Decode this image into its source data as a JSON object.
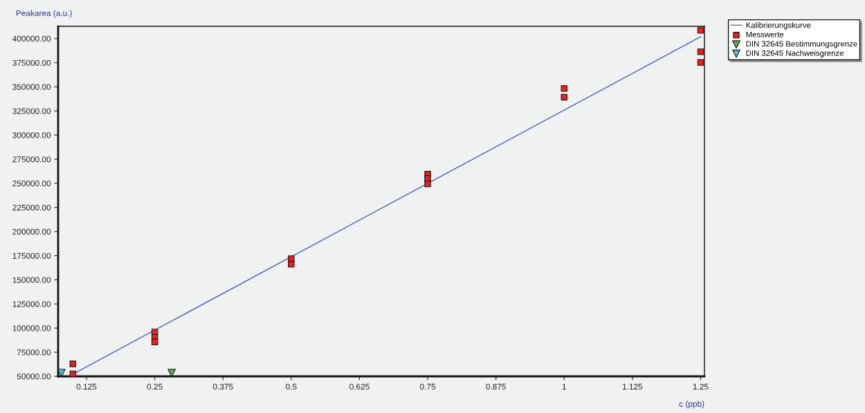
{
  "chart_data": {
    "type": "scatter",
    "xlabel": "c (ppb)",
    "ylabel": "Peakarea (a.u.)",
    "series": [
      {
        "name": "Kalibrierungskurve",
        "type": "line",
        "color": "#4a5ebf",
        "marker": "none",
        "line_style": "solid",
        "x": [
          0.1,
          1.25
        ],
        "values": [
          52300,
          401900
        ]
      },
      {
        "name": "Messwerte",
        "color": "#e8201f",
        "marker": "square",
        "x": [
          0.1,
          0.1,
          0.25,
          0.25,
          0.25,
          0.5,
          0.5,
          0.75,
          0.75,
          0.75,
          1,
          1,
          1.25,
          1.25,
          1.25
        ],
        "values": [
          62900,
          52500,
          95900,
          90400,
          85600,
          171900,
          166200,
          259500,
          255000,
          249500,
          348300,
          339300,
          408500,
          386300,
          375200
        ]
      },
      {
        "name": "DIN 32645 Bestimmungsgrenze",
        "color": "#5fae3a",
        "marker": "triangle",
        "x": [
          0.281
        ],
        "values": [
          53500
        ]
      },
      {
        "name": "DIN 32645 Nachweisgrenze",
        "color": "#4fbfcf",
        "marker": "triangle",
        "x": [
          0.079
        ],
        "values": [
          53500
        ]
      }
    ],
    "xlim": [
      0.073,
      1.257
    ],
    "xticks": [
      0.125,
      0.25,
      0.375,
      0.5,
      0.625,
      0.75,
      0.875,
      1,
      1.125,
      1.25
    ],
    "ylim": [
      50000,
      412700
    ],
    "yticks": [
      {
        "value": 50000,
        "label": "50000.00"
      },
      {
        "value": 75000,
        "label": "75000.00"
      },
      {
        "value": 100000,
        "label": "100000.00"
      },
      {
        "value": 125000,
        "label": "125000.00"
      },
      {
        "value": 150000,
        "label": "150000.00"
      },
      {
        "value": 175000,
        "label": "175000.00"
      },
      {
        "value": 200000,
        "label": "200000.00"
      },
      {
        "value": 225000,
        "label": "225000.00"
      },
      {
        "value": 250000,
        "label": "250000.00"
      },
      {
        "value": 275000,
        "label": "275000.00"
      },
      {
        "value": 300000,
        "label": "300000.00"
      },
      {
        "value": 325000,
        "label": "325000.00"
      },
      {
        "value": 350000,
        "label": "350000.00"
      },
      {
        "value": 375000,
        "label": "375000.00"
      },
      {
        "value": 400000,
        "label": "400000.00"
      }
    ],
    "grid": false,
    "legend": "top right"
  }
}
